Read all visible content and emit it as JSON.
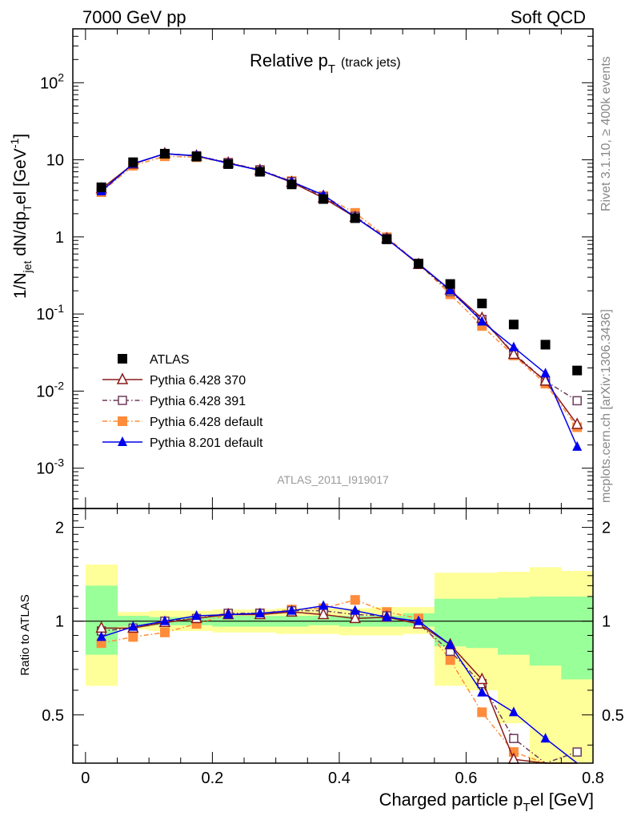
{
  "header": {
    "left": "7000 GeV pp",
    "right": "Soft QCD"
  },
  "chart_data": {
    "type": "line",
    "title": "Relative p",
    "title_sub": "T",
    "title_suffix": "(track jets)",
    "analysis_label": "ATLAS_2011_I919017",
    "side_label_top": "Rivet 3.1.10, ≥ 400k events",
    "side_label_bottom": "mcplots.cern.ch [arXiv:1306.3436]",
    "ylabel": "1/N",
    "ylabel_sub": "jet",
    "ylabel_main": " dN/dp",
    "ylabel_sub2": "T",
    "ylabel_rest": "el [GeV",
    "ylabel_sup": "-1",
    "ylabel_end": "]",
    "ratio_ylabel": "Ratio to ATLAS",
    "xlabel": "Charged particle p",
    "xlabel_sub": "T",
    "xlabel_rest": "el [GeV]",
    "xlim": [
      -0.02,
      0.8
    ],
    "ylim": [
      0.0003,
      500
    ],
    "yscale": "log",
    "ratio_ylim": [
      0.35,
      2.3
    ],
    "x_ticks": [
      "0",
      "0.2",
      "0.4",
      "0.6",
      "0.8"
    ],
    "y_ticks": [
      {
        "base": "10",
        "exp": "-3"
      },
      {
        "base": "10",
        "exp": "-2"
      },
      {
        "base": "10",
        "exp": "-1"
      },
      {
        "base": "1",
        "exp": ""
      },
      {
        "base": "10",
        "exp": ""
      },
      {
        "base": "10",
        "exp": "2"
      }
    ],
    "ratio_y_ticks": [
      "0.5",
      "1",
      "2"
    ],
    "x": [
      0.025,
      0.075,
      0.125,
      0.175,
      0.225,
      0.275,
      0.325,
      0.375,
      0.425,
      0.475,
      0.525,
      0.575,
      0.625,
      0.675,
      0.725,
      0.775
    ],
    "bands_inner": [
      [
        0.0,
        0.05,
        0.78,
        1.3
      ],
      [
        0.05,
        0.1,
        0.96,
        1.04
      ],
      [
        0.1,
        0.15,
        0.97,
        1.03
      ],
      [
        0.15,
        0.2,
        0.97,
        1.03
      ],
      [
        0.2,
        0.25,
        0.96,
        1.04
      ],
      [
        0.25,
        0.3,
        0.96,
        1.04
      ],
      [
        0.3,
        0.35,
        0.96,
        1.04
      ],
      [
        0.35,
        0.4,
        0.97,
        1.04
      ],
      [
        0.4,
        0.45,
        0.96,
        1.04
      ],
      [
        0.45,
        0.5,
        0.96,
        1.04
      ],
      [
        0.5,
        0.55,
        0.96,
        1.06
      ],
      [
        0.55,
        0.6,
        0.83,
        1.18
      ],
      [
        0.6,
        0.65,
        0.82,
        1.18
      ],
      [
        0.65,
        0.7,
        0.78,
        1.19
      ],
      [
        0.7,
        0.75,
        0.72,
        1.2
      ],
      [
        0.75,
        0.8,
        0.65,
        1.2
      ]
    ],
    "bands_outer": [
      [
        0.0,
        0.05,
        0.62,
        1.52
      ],
      [
        0.05,
        0.1,
        0.94,
        1.07
      ],
      [
        0.1,
        0.15,
        0.93,
        1.08
      ],
      [
        0.15,
        0.2,
        0.93,
        1.08
      ],
      [
        0.2,
        0.25,
        0.92,
        1.09
      ],
      [
        0.25,
        0.3,
        0.92,
        1.09
      ],
      [
        0.3,
        0.35,
        0.91,
        1.1
      ],
      [
        0.35,
        0.4,
        0.91,
        1.1
      ],
      [
        0.4,
        0.45,
        0.9,
        1.1
      ],
      [
        0.45,
        0.5,
        0.9,
        1.11
      ],
      [
        0.5,
        0.55,
        0.91,
        1.11
      ],
      [
        0.55,
        0.6,
        0.62,
        1.43
      ],
      [
        0.6,
        0.65,
        0.6,
        1.43
      ],
      [
        0.65,
        0.7,
        0.47,
        1.44
      ],
      [
        0.7,
        0.75,
        0.35,
        1.49
      ],
      [
        0.75,
        0.8,
        0.35,
        1.45
      ]
    ],
    "series": [
      {
        "name": "ATLAS",
        "color": "#000000",
        "marker": "square-filled",
        "line": "none",
        "values": [
          4.4,
          9.3,
          12.0,
          11.0,
          8.8,
          7.0,
          4.8,
          3.1,
          1.75,
          0.93,
          0.45,
          0.245,
          0.137,
          0.073,
          0.04,
          0.0185
        ],
        "ratio": [
          1,
          1,
          1,
          1,
          1,
          1,
          1,
          1,
          1,
          1,
          1,
          1,
          1,
          1,
          1,
          1
        ]
      },
      {
        "name": "Pythia 6.428 370",
        "color": "#8b1a1a",
        "marker": "triangle-open",
        "line": "solid",
        "values": [
          4.2,
          8.8,
          12.0,
          11.2,
          9.1,
          7.3,
          5.1,
          3.2,
          1.8,
          0.95,
          0.44,
          0.205,
          0.088,
          0.03,
          0.0135,
          0.0037
        ],
        "ratio": [
          0.95,
          0.95,
          0.99,
          1.02,
          1.05,
          1.05,
          1.07,
          1.05,
          1.02,
          1.03,
          0.98,
          0.84,
          0.65,
          0.36,
          0.33,
          0.2
        ]
      },
      {
        "name": "Pythia 6.428 391",
        "color": "#6e3b5a",
        "marker": "square-open",
        "line": "dashdot",
        "values": [
          4.1,
          8.9,
          12.0,
          11.3,
          9.2,
          7.4,
          5.2,
          3.3,
          1.85,
          0.96,
          0.44,
          0.195,
          0.085,
          0.031,
          0.0135,
          0.0075
        ],
        "ratio": [
          0.93,
          0.95,
          1.0,
          1.02,
          1.06,
          1.06,
          1.08,
          1.08,
          1.05,
          1.04,
          0.98,
          0.8,
          0.63,
          0.42,
          0.34,
          0.38
        ]
      },
      {
        "name": "Pythia 6.428 default",
        "color": "#ff8c3a",
        "marker": "square-filled",
        "line": "dashdot",
        "values": [
          3.8,
          8.4,
          11.1,
          10.8,
          9.2,
          7.4,
          5.3,
          3.4,
          2.05,
          0.99,
          0.45,
          0.18,
          0.07,
          0.029,
          0.0125,
          0.0034
        ],
        "ratio": [
          0.85,
          0.89,
          0.92,
          0.98,
          1.05,
          1.06,
          1.09,
          1.1,
          1.17,
          1.07,
          1.02,
          0.75,
          0.51,
          0.38,
          0.31,
          0.18
        ]
      },
      {
        "name": "Pythia 8.201 default",
        "color": "#0000ee",
        "marker": "triangle-filled",
        "line": "solid",
        "values": [
          3.9,
          8.9,
          12.0,
          11.3,
          9.0,
          7.3,
          5.2,
          3.5,
          1.8,
          0.94,
          0.45,
          0.205,
          0.08,
          0.037,
          0.017,
          0.0019
        ],
        "ratio": [
          0.89,
          0.96,
          1.0,
          1.04,
          1.05,
          1.06,
          1.08,
          1.12,
          1.08,
          1.03,
          1.0,
          0.84,
          0.59,
          0.51,
          0.42,
          0.1
        ]
      }
    ]
  }
}
